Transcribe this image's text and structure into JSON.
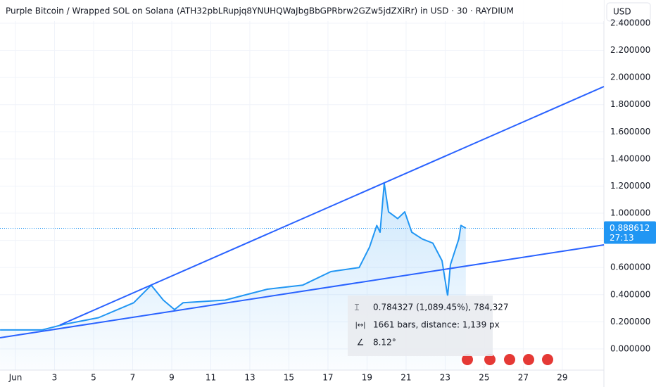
{
  "chart_data": {
    "type": "line",
    "title": "Purple Bitcoin / Wrapped SOL on Solana (ATH32pbLRupjq8YNUHQWaJbgBbGPRbrw2GZw5jdZXiRr) in USD · 30 · RAYDIUM",
    "currency": "USD",
    "x": [
      0.21,
      2.37,
      3.45,
      5.25,
      7.05,
      7.95,
      8.57,
      9.14,
      9.58,
      11.74,
      13.9,
      15.7,
      17.15,
      18.6,
      19.13,
      19.5,
      19.67,
      19.88,
      20.1,
      20.57,
      20.93,
      21.29,
      21.83,
      22.37,
      22.84,
      23.13,
      23.27,
      23.7,
      23.81,
      24.06
    ],
    "series": [
      {
        "name": "Purple Bitcoin / Wrapped SOL",
        "color": "#2196f3",
        "values": [
          0.14,
          0.14,
          0.18,
          0.23,
          0.34,
          0.47,
          0.36,
          0.29,
          0.34,
          0.36,
          0.44,
          0.47,
          0.57,
          0.6,
          0.75,
          0.91,
          0.86,
          1.22,
          1.01,
          0.96,
          1.01,
          0.86,
          0.81,
          0.78,
          0.65,
          0.39,
          0.62,
          0.81,
          0.91,
          0.89
        ]
      }
    ],
    "last_price": 0.888612,
    "countdown": "27:13",
    "xlim": [
      0.207,
      31.13
    ],
    "xticks": [
      {
        "value": 1,
        "label": "Jun"
      },
      3,
      5,
      7,
      9,
      11,
      13,
      15,
      17,
      19,
      21,
      23,
      25,
      27,
      29
    ],
    "ylim": [
      -0.156,
      2.571
    ],
    "yticks": [
      {
        "value": 0,
        "label": "0.000000"
      },
      {
        "value": 0.2,
        "label": "0.200000"
      },
      {
        "value": 0.4,
        "label": "0.400000"
      },
      {
        "value": 0.6,
        "label": "0.600000"
      },
      {
        "value": 0.8,
        "label": "0.800000"
      },
      {
        "value": 1,
        "label": "1.000000"
      },
      {
        "value": 1.2,
        "label": "1.200000"
      },
      {
        "value": 1.4,
        "label": "1.400000"
      },
      {
        "value": 1.6,
        "label": "1.600000"
      },
      {
        "value": 1.8,
        "label": "1.800000"
      },
      {
        "value": 2,
        "label": "2.000000"
      },
      {
        "value": 2.2,
        "label": "2.200000"
      },
      {
        "value": 2.4,
        "label": "2.400000"
      }
    ],
    "grid": true,
    "annotations": [
      "0.784327 (1,089.45%), 784,327",
      "1661 bars, distance: 1,139 px",
      "8.12°"
    ]
  }
}
